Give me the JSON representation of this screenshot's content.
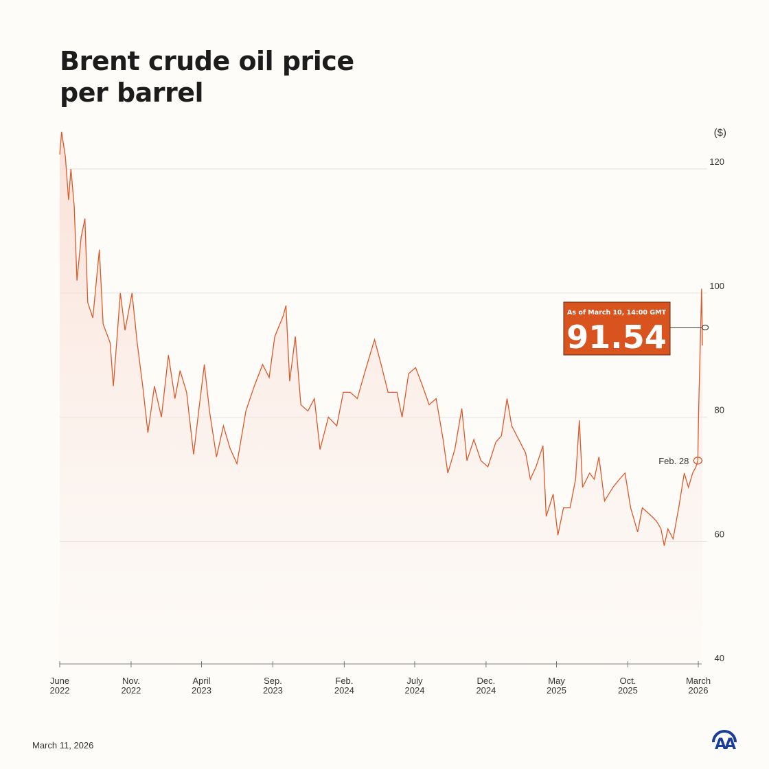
{
  "title_lines": [
    "Brent crude oil price",
    "per barrel"
  ],
  "footer": {
    "date": "March 11, 2026",
    "logo_text": "AA"
  },
  "colors": {
    "line": "#e0572a",
    "box": "#d9531f",
    "grid": "#e4e1dc",
    "logo": "#1a3d9c"
  },
  "chart_data": {
    "type": "line",
    "title": "Brent crude oil price per barrel",
    "unit_label": "($)",
    "ylim": [
      40,
      127
    ],
    "yticks": [
      40,
      60,
      80,
      100,
      120
    ],
    "grid": true,
    "xticks": [
      {
        "date": "2022-06-01",
        "label": [
          "June",
          "2022"
        ]
      },
      {
        "date": "2022-11-01",
        "label": [
          "Nov.",
          "2022"
        ]
      },
      {
        "date": "2023-04-01",
        "label": [
          "April",
          "2023"
        ]
      },
      {
        "date": "2023-09-01",
        "label": [
          "Sep.",
          "2023"
        ]
      },
      {
        "date": "2024-02-01",
        "label": [
          "Feb.",
          "2024"
        ]
      },
      {
        "date": "2024-07-01",
        "label": [
          "July",
          "2024"
        ]
      },
      {
        "date": "2024-12-01",
        "label": [
          "Dec.",
          "2024"
        ]
      },
      {
        "date": "2025-05-01",
        "label": [
          "May",
          "2025"
        ]
      },
      {
        "date": "2025-10-01",
        "label": [
          "Oct.",
          "2025"
        ]
      },
      {
        "date": "2026-03-01",
        "label": [
          "March",
          "2026"
        ]
      }
    ],
    "series": [
      {
        "x": [
          "2022-06-01",
          "2022-06-05",
          "2022-06-13",
          "2022-06-20",
          "2022-06-25",
          "2022-07-02",
          "2022-07-08",
          "2022-07-17",
          "2022-07-25",
          "2022-07-31",
          "2022-08-11",
          "2022-08-25",
          "2022-09-02",
          "2022-09-17",
          "2022-09-24",
          "2022-10-09",
          "2022-10-19",
          "2022-11-03",
          "2022-11-14",
          "2022-11-26",
          "2022-12-07",
          "2022-12-21",
          "2023-01-05",
          "2023-01-20",
          "2023-02-03",
          "2023-02-14",
          "2023-02-28",
          "2023-03-15",
          "2023-03-26",
          "2023-04-07",
          "2023-04-18",
          "2023-05-03",
          "2023-05-18",
          "2023-06-01",
          "2023-06-16",
          "2023-07-05",
          "2023-07-23",
          "2023-08-10",
          "2023-08-24",
          "2023-09-05",
          "2023-09-23",
          "2023-09-29",
          "2023-10-07",
          "2023-10-19",
          "2023-10-31",
          "2023-11-15",
          "2023-11-29",
          "2023-12-11",
          "2023-12-29",
          "2024-01-16",
          "2024-01-30",
          "2024-02-14",
          "2024-02-29",
          "2024-03-17",
          "2024-04-06",
          "2024-04-20",
          "2024-05-05",
          "2024-05-24",
          "2024-06-04",
          "2024-06-18",
          "2024-07-03",
          "2024-07-18",
          "2024-08-01",
          "2024-08-16",
          "2024-08-31",
          "2024-09-10",
          "2024-09-25",
          "2024-10-10",
          "2024-10-21",
          "2024-11-05",
          "2024-11-20",
          "2024-12-05",
          "2024-12-22",
          "2025-01-03",
          "2025-01-15",
          "2025-01-25",
          "2025-02-09",
          "2025-02-24",
          "2025-03-06",
          "2025-03-18",
          "2025-04-02",
          "2025-04-09",
          "2025-04-24",
          "2025-05-04",
          "2025-05-16",
          "2025-05-30",
          "2025-06-11",
          "2025-06-19",
          "2025-06-26",
          "2025-07-11",
          "2025-07-21",
          "2025-07-31",
          "2025-08-12",
          "2025-08-30",
          "2025-09-13",
          "2025-09-25",
          "2025-10-07",
          "2025-10-22",
          "2025-11-01",
          "2025-11-16",
          "2025-12-01",
          "2025-12-11",
          "2025-12-18",
          "2025-12-26",
          "2026-01-06",
          "2026-01-18",
          "2026-01-30",
          "2026-02-08",
          "2026-02-17",
          "2026-02-24",
          "2026-02-28",
          "2026-03-02",
          "2026-03-06",
          "2026-03-08",
          "2026-03-10"
        ],
        "y": [
          122.3,
          126,
          122,
          115,
          120,
          114,
          102,
          109,
          112,
          98.5,
          96,
          107,
          95,
          92,
          85,
          100,
          94,
          100,
          92,
          85,
          77.5,
          85,
          80,
          90,
          83,
          87.5,
          84,
          74,
          81,
          88.5,
          81,
          73.6,
          78.6,
          75,
          72.5,
          81,
          85,
          88.5,
          86.4,
          93,
          96.3,
          98,
          85.8,
          93,
          82,
          81,
          83,
          74.8,
          80,
          78.6,
          84,
          84,
          83,
          87.5,
          92.5,
          88.5,
          84,
          84,
          80,
          87,
          88,
          85,
          82,
          83,
          76.4,
          71,
          74.8,
          81.4,
          73,
          76.4,
          73,
          72,
          76,
          77,
          83,
          78.6,
          76.4,
          74.2,
          70,
          72,
          75.4,
          64,
          67.6,
          61,
          65.4,
          65.4,
          70,
          79.5,
          68.7,
          71,
          70,
          73.6,
          66.5,
          68.7,
          70,
          71,
          65.4,
          61.5,
          65.4,
          64.4,
          63.3,
          62,
          59.3,
          62,
          60.4,
          65.4,
          71,
          68.7,
          71,
          72,
          73,
          82,
          94,
          100.7,
          91.54
        ]
      }
    ],
    "annotations": [
      {
        "date": "2026-02-28",
        "value": 73,
        "label": "Feb. 28"
      },
      {
        "date": "2026-03-10",
        "value": 91.54,
        "caption": "As of March 10, 14:00 GMT",
        "label": "91.54"
      }
    ]
  }
}
